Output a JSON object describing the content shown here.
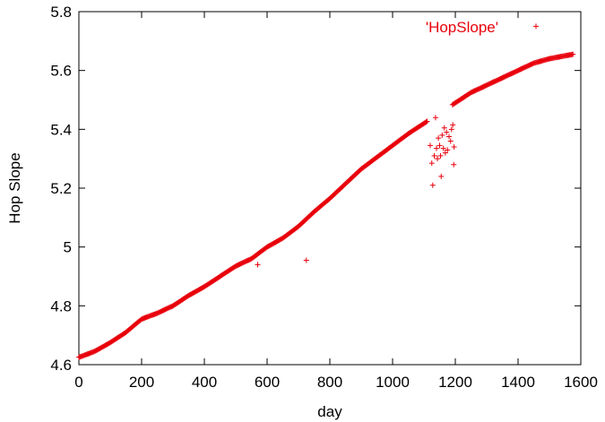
{
  "chart_data": {
    "type": "scatter",
    "xlabel": "day",
    "ylabel": "Hop Slope",
    "xlim": [
      0,
      1600
    ],
    "ylim": [
      4.6,
      5.8
    ],
    "xticks": [
      "0",
      "200",
      "400",
      "600",
      "800",
      "1000",
      "1200",
      "1400",
      "1600"
    ],
    "yticks": [
      "4.6",
      "4.8",
      "5",
      "5.2",
      "5.4",
      "5.6",
      "5.8"
    ],
    "grid": false,
    "legend_position": "top-right",
    "series": [
      {
        "name": "'HopSlope'",
        "color": "#e8000b",
        "marker": "plus",
        "main_trend": [
          [
            0,
            4.625
          ],
          [
            50,
            4.645
          ],
          [
            100,
            4.675
          ],
          [
            150,
            4.71
          ],
          [
            200,
            4.755
          ],
          [
            250,
            4.775
          ],
          [
            300,
            4.8
          ],
          [
            350,
            4.835
          ],
          [
            400,
            4.865
          ],
          [
            450,
            4.9
          ],
          [
            500,
            4.935
          ],
          [
            550,
            4.96
          ],
          [
            600,
            5.0
          ],
          [
            650,
            5.03
          ],
          [
            700,
            5.07
          ],
          [
            750,
            5.12
          ],
          [
            800,
            5.165
          ],
          [
            850,
            5.215
          ],
          [
            900,
            5.265
          ],
          [
            950,
            5.305
          ],
          [
            1000,
            5.345
          ],
          [
            1050,
            5.385
          ],
          [
            1100,
            5.42
          ],
          [
            1200,
            5.49
          ],
          [
            1250,
            5.525
          ],
          [
            1300,
            5.55
          ],
          [
            1350,
            5.575
          ],
          [
            1400,
            5.6
          ],
          [
            1450,
            5.625
          ],
          [
            1500,
            5.64
          ],
          [
            1550,
            5.65
          ],
          [
            1575,
            5.655
          ]
        ],
        "gaps": [
          [
            1110,
            1190
          ]
        ],
        "outliers": [
          [
            570,
            4.94
          ],
          [
            725,
            4.955
          ],
          [
            1120,
            5.345
          ],
          [
            1125,
            5.285
          ],
          [
            1128,
            5.21
          ],
          [
            1133,
            5.31
          ],
          [
            1137,
            5.44
          ],
          [
            1140,
            5.335
          ],
          [
            1143,
            5.3
          ],
          [
            1146,
            5.37
          ],
          [
            1150,
            5.345
          ],
          [
            1153,
            5.31
          ],
          [
            1155,
            5.24
          ],
          [
            1158,
            5.38
          ],
          [
            1162,
            5.335
          ],
          [
            1165,
            5.405
          ],
          [
            1168,
            5.32
          ],
          [
            1172,
            5.39
          ],
          [
            1175,
            5.33
          ],
          [
            1180,
            5.375
          ],
          [
            1185,
            5.36
          ],
          [
            1188,
            5.4
          ],
          [
            1192,
            5.415
          ],
          [
            1195,
            5.28
          ],
          [
            1196,
            5.34
          ]
        ]
      }
    ],
    "legend_marker_value": 5.75
  }
}
